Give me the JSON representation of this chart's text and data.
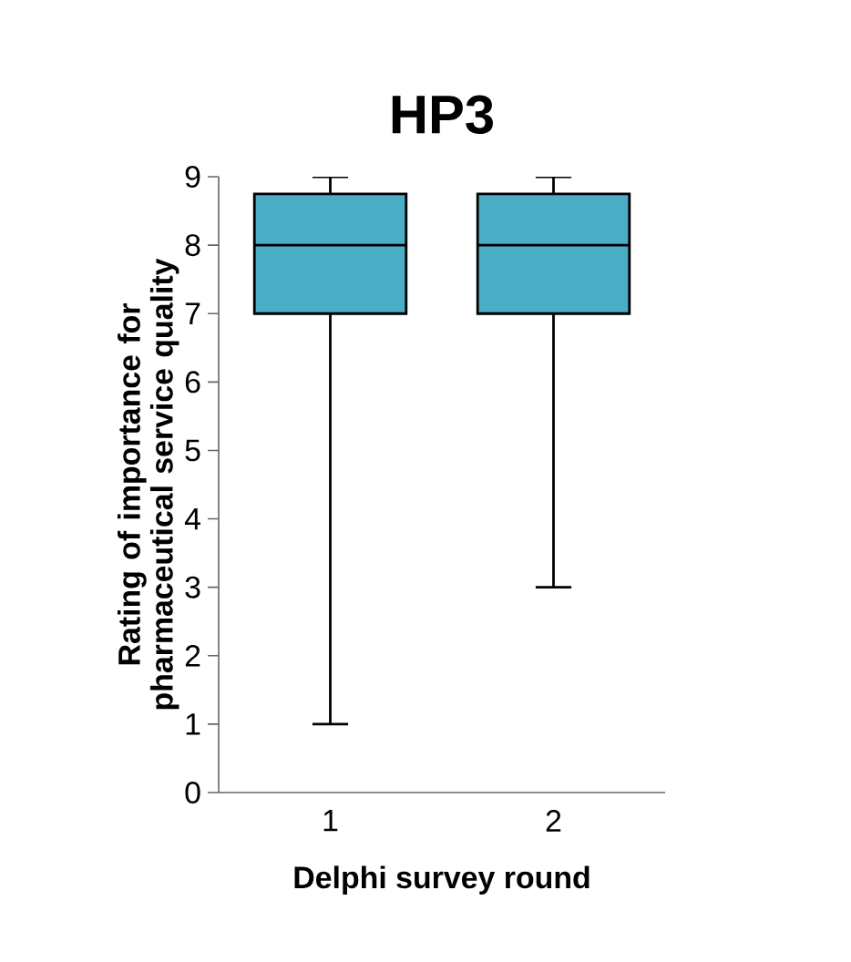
{
  "chart_data": {
    "type": "box",
    "title": "HP3",
    "xlabel": "Delphi survey round",
    "ylabel": "Rating of importance for pharmaceutical service quality",
    "categories": [
      "1",
      "2"
    ],
    "series": [
      {
        "color": "#4bacc6",
        "boxes": [
          {
            "low": 1,
            "q1": 7,
            "median": 8,
            "q3": 8.75,
            "high": 9
          },
          {
            "low": 3,
            "q1": 7,
            "median": 8,
            "q3": 8.75,
            "high": 9
          }
        ]
      }
    ],
    "ylim": [
      0,
      9
    ],
    "yticks": [
      0,
      1,
      2,
      3,
      4,
      5,
      6,
      7,
      8,
      9
    ]
  }
}
